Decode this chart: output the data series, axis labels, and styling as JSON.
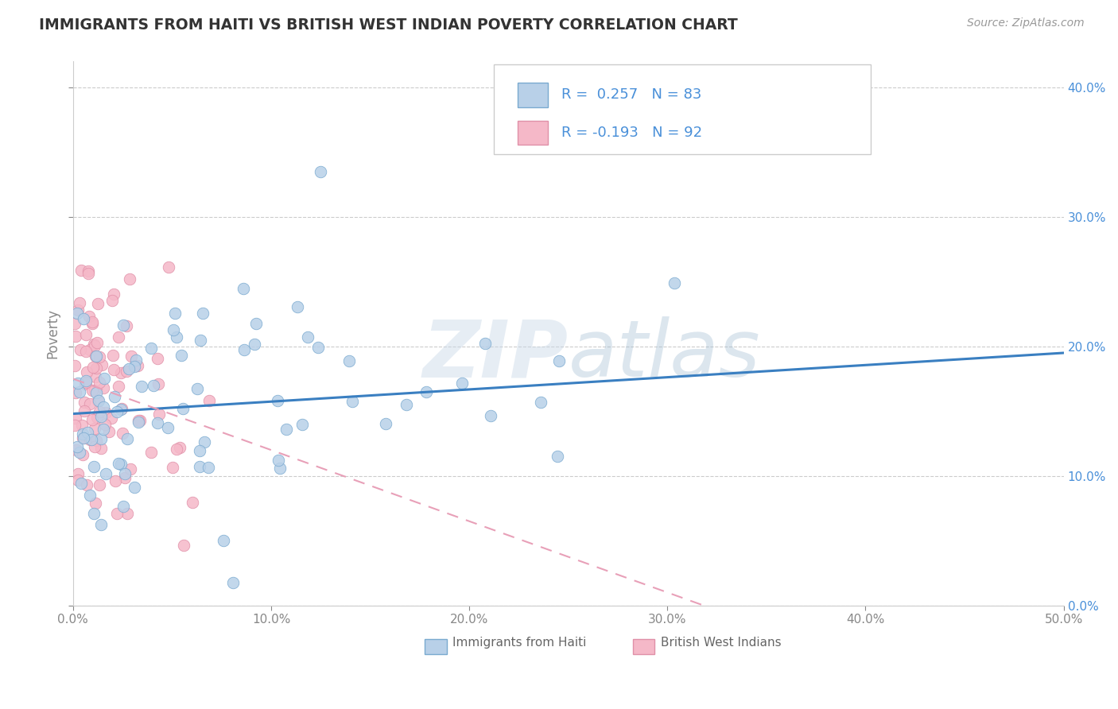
{
  "title": "IMMIGRANTS FROM HAITI VS BRITISH WEST INDIAN POVERTY CORRELATION CHART",
  "source": "Source: ZipAtlas.com",
  "xlabel": "",
  "ylabel": "Poverty",
  "xlim": [
    0.0,
    0.5
  ],
  "ylim": [
    0.0,
    0.42
  ],
  "xticks": [
    0.0,
    0.1,
    0.2,
    0.3,
    0.4,
    0.5
  ],
  "yticks": [
    0.0,
    0.1,
    0.2,
    0.3,
    0.4
  ],
  "xticklabels": [
    "0.0%",
    "",
    "",
    "",
    "",
    "50.0%"
  ],
  "xticklabels_minor": [
    "10.0%",
    "20.0%",
    "30.0%",
    "40.0%"
  ],
  "legend_haiti": "Immigrants from Haiti",
  "legend_bwi": "British West Indians",
  "haiti_R": 0.257,
  "haiti_N": 83,
  "bwi_R": -0.193,
  "bwi_N": 92,
  "haiti_color": "#b8d0e8",
  "bwi_color": "#f5b8c8",
  "haiti_edge_color": "#7aaad0",
  "bwi_edge_color": "#e090a8",
  "haiti_line_color": "#3a7fc1",
  "bwi_line_color": "#e8a0b8",
  "background_color": "#ffffff",
  "grid_color": "#cccccc",
  "watermark": "ZIPatlas",
  "title_color": "#333333",
  "axis_color": "#888888",
  "legend_r_color": "#4a90d9",
  "haiti_line_intercept": 0.148,
  "haiti_line_slope": 0.094,
  "bwi_line_intercept": 0.175,
  "bwi_line_slope": -0.55,
  "haiti_seed": 42,
  "bwi_seed": 7
}
